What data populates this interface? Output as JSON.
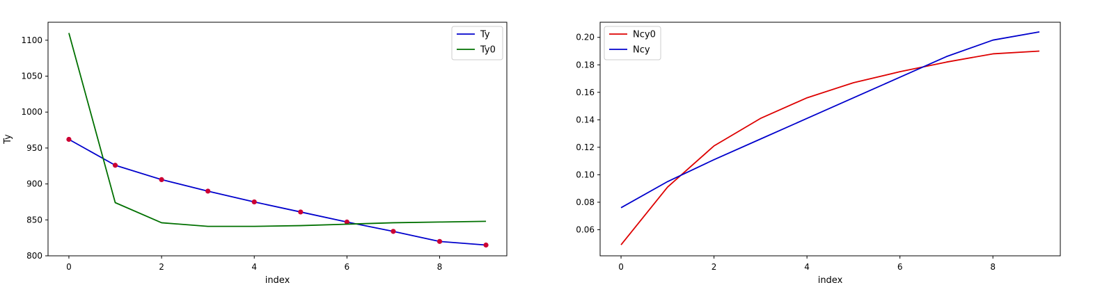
{
  "chart_data": [
    {
      "type": "line",
      "xlabel": "index",
      "ylabel": "Ty",
      "xlim": [
        -0.45,
        9.45
      ],
      "ylim": [
        800,
        1125
      ],
      "xticks": [
        0,
        2,
        4,
        6,
        8
      ],
      "yticks": [
        800,
        850,
        900,
        950,
        1000,
        1050,
        1100
      ],
      "ytick_labels": [
        "800",
        "850",
        "900",
        "950",
        "1000",
        "1050",
        "1100"
      ],
      "grid": false,
      "legend_position": "top-right",
      "x": [
        0,
        1,
        2,
        3,
        4,
        5,
        6,
        7,
        8,
        9
      ],
      "series": [
        {
          "name": "Ty",
          "color": "#0000cc",
          "markers": true,
          "marker_color": "#cc0033",
          "values": [
            962,
            926,
            906,
            890,
            875,
            861,
            847,
            834,
            820,
            815
          ]
        },
        {
          "name": "Ty0",
          "color": "#007000",
          "markers": false,
          "values": [
            1110,
            874,
            846,
            841,
            841,
            842,
            844,
            846,
            847,
            848
          ]
        }
      ]
    },
    {
      "type": "line",
      "xlabel": "index",
      "ylabel": "",
      "xlim": [
        -0.45,
        9.45
      ],
      "ylim": [
        0.041,
        0.211
      ],
      "xticks": [
        0,
        2,
        4,
        6,
        8
      ],
      "yticks": [
        0.06,
        0.08,
        0.1,
        0.12,
        0.14,
        0.16,
        0.18,
        0.2
      ],
      "ytick_labels": [
        "0.06",
        "0.08",
        "0.10",
        "0.12",
        "0.14",
        "0.16",
        "0.18",
        "0.20"
      ],
      "grid": false,
      "legend_position": "top-left",
      "x": [
        0,
        1,
        2,
        3,
        4,
        5,
        6,
        7,
        8,
        9
      ],
      "series": [
        {
          "name": "Ncy0",
          "color": "#dd0000",
          "markers": false,
          "values": [
            0.049,
            0.091,
            0.121,
            0.141,
            0.156,
            0.167,
            0.175,
            0.182,
            0.188,
            0.19
          ]
        },
        {
          "name": "Ncy",
          "color": "#0000cc",
          "markers": false,
          "values": [
            0.076,
            0.095,
            0.111,
            0.126,
            0.141,
            0.156,
            0.171,
            0.186,
            0.198,
            0.204
          ]
        }
      ]
    }
  ]
}
